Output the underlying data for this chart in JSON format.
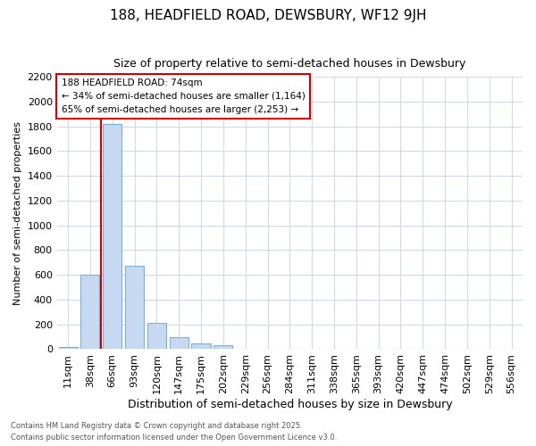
{
  "title1": "188, HEADFIELD ROAD, DEWSBURY, WF12 9JH",
  "title2": "Size of property relative to semi-detached houses in Dewsbury",
  "xlabel": "Distribution of semi-detached houses by size in Dewsbury",
  "ylabel": "Number of semi-detached properties",
  "categories": [
    "11sqm",
    "38sqm",
    "66sqm",
    "93sqm",
    "120sqm",
    "147sqm",
    "175sqm",
    "202sqm",
    "229sqm",
    "256sqm",
    "284sqm",
    "311sqm",
    "338sqm",
    "365sqm",
    "393sqm",
    "420sqm",
    "447sqm",
    "474sqm",
    "502sqm",
    "529sqm",
    "556sqm"
  ],
  "values": [
    20,
    600,
    1820,
    670,
    210,
    95,
    45,
    35,
    0,
    0,
    0,
    0,
    0,
    0,
    0,
    0,
    0,
    0,
    0,
    0,
    0
  ],
  "bar_color": "#c6d9f0",
  "bar_edge_color": "#7aafde",
  "red_line_x": 1.5,
  "annotation_title": "188 HEADFIELD ROAD: 74sqm",
  "annotation_line1": "← 34% of semi-detached houses are smaller (1,164)",
  "annotation_line2": "65% of semi-detached houses are larger (2,253) →",
  "ylim": [
    0,
    2200
  ],
  "yticks": [
    0,
    200,
    400,
    600,
    800,
    1000,
    1200,
    1400,
    1600,
    1800,
    2000,
    2200
  ],
  "footer1": "Contains HM Land Registry data © Crown copyright and database right 2025.",
  "footer2": "Contains public sector information licensed under the Open Government Licence v3.0.",
  "bg_color": "#ffffff",
  "grid_color": "#d0daea",
  "annotation_box_color": "#ffffff",
  "annotation_box_edge": "#cc0000",
  "red_line_color": "#cc0000",
  "title1_fontsize": 11,
  "title2_fontsize": 9,
  "xlabel_fontsize": 9,
  "ylabel_fontsize": 8,
  "tick_fontsize": 8,
  "footer_fontsize": 6
}
